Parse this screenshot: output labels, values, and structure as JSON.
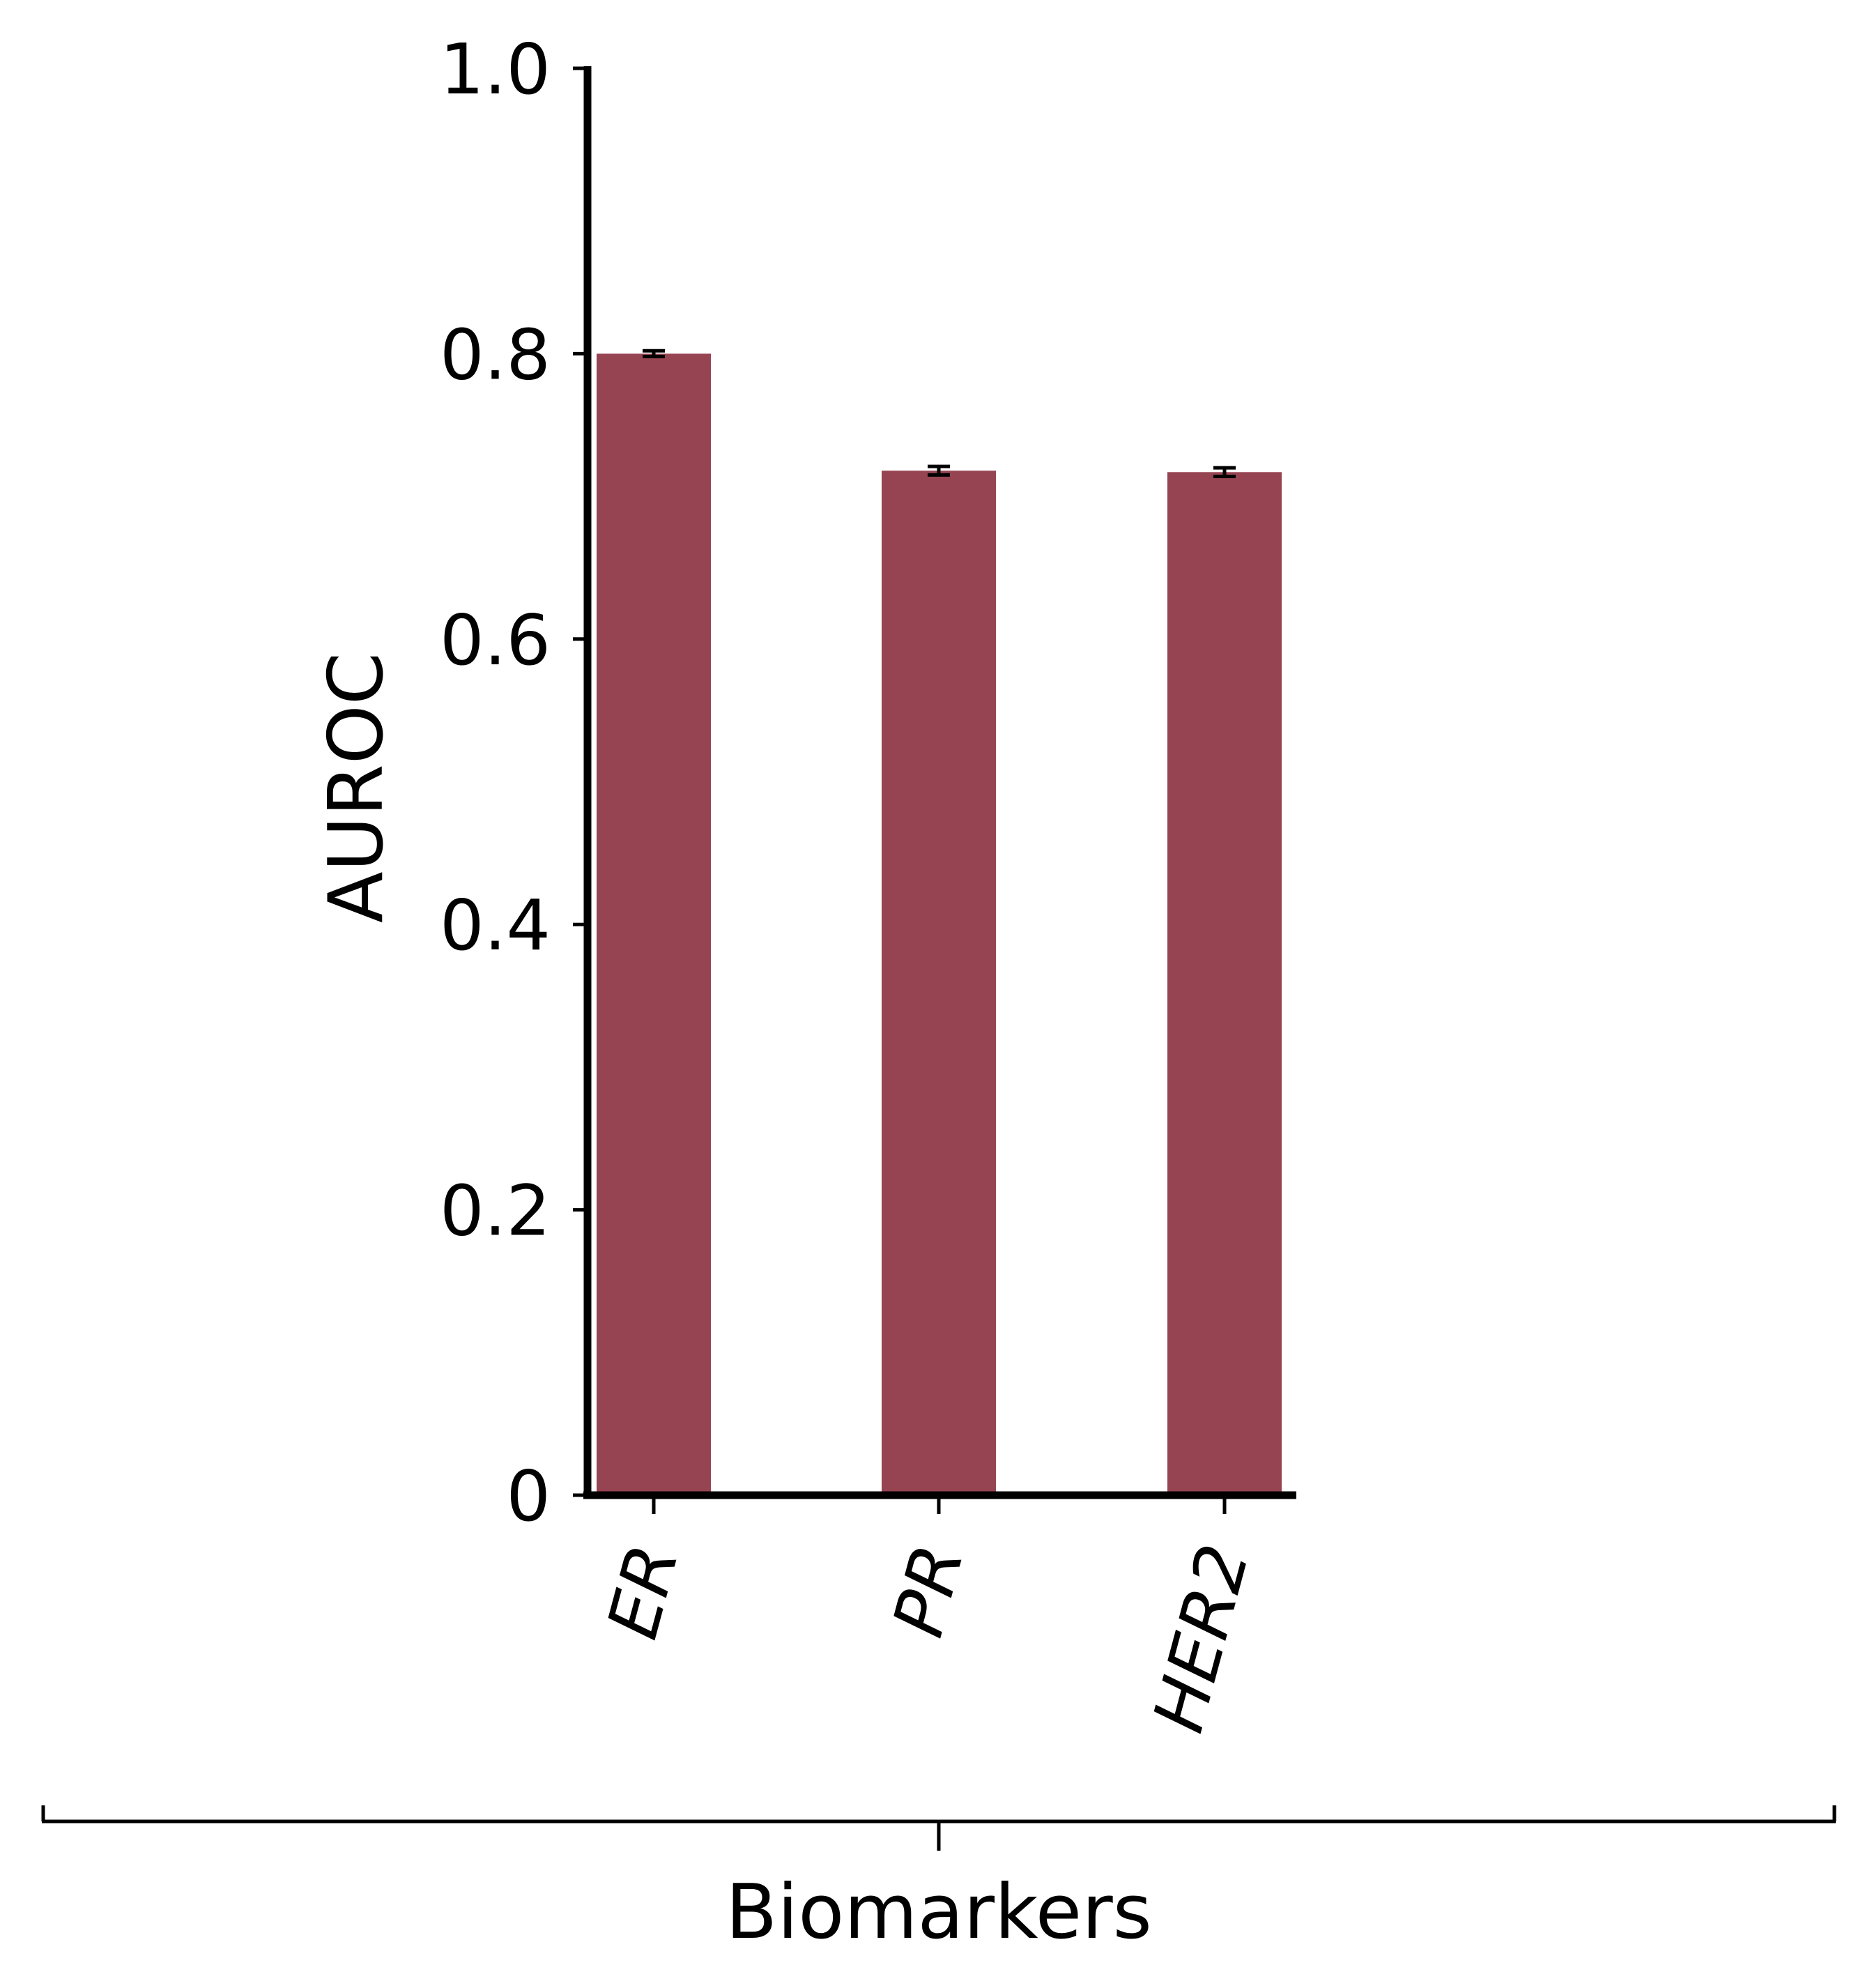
{
  "chart_data": {
    "type": "bar",
    "categories": [
      "ER",
      "PR",
      "HER2"
    ],
    "values": [
      0.8,
      0.718,
      0.717
    ],
    "errors": [
      0.002,
      0.003,
      0.003
    ],
    "ylabel": "AUROC",
    "xlabel": "Biomarkers",
    "ylim": [
      0,
      1.0
    ],
    "yticks": [
      "0",
      "0.2",
      "0.4",
      "0.6",
      "0.8",
      "1.0"
    ],
    "bar_color": "#974452",
    "grid": false,
    "legend": "none"
  }
}
